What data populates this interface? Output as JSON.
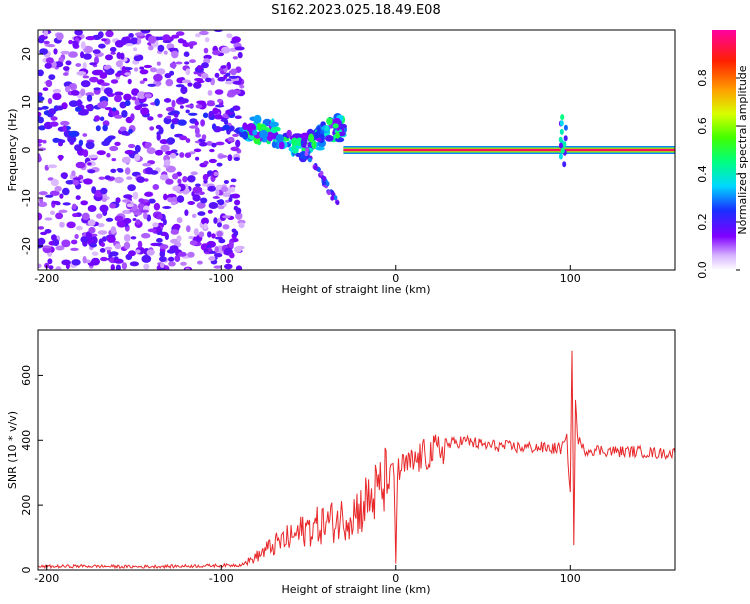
{
  "title": "S162.2023.025.18.49.E08",
  "chart_data": [
    {
      "type": "heatmap",
      "xlabel": "Height of straight line (km)",
      "ylabel": "Frequency (Hz)",
      "xlim": [
        -205,
        160
      ],
      "ylim": [
        -25,
        25
      ],
      "x_ticks": [
        -200,
        -100,
        0,
        100
      ],
      "x_tick_labels": [
        "-200",
        "-100",
        "0",
        "100"
      ],
      "y_ticks": [
        -20,
        -10,
        0,
        10,
        20
      ],
      "y_tick_labels": [
        "-20",
        "-10",
        "0",
        "10",
        "20"
      ],
      "colorbar": {
        "label": "Normalized spectral amplitude",
        "range": [
          0,
          1
        ],
        "ticks": [
          0.0,
          0.2,
          0.4,
          0.6,
          0.8
        ],
        "tick_labels": [
          "0.0",
          "0.2",
          "0.4",
          "0.6",
          "0.8"
        ]
      },
      "features": [
        {
          "desc": "broadband noise",
          "x_range": [
            -205,
            -88
          ],
          "freq_range": [
            -25,
            25
          ],
          "amplitude": 0.15
        },
        {
          "desc": "emerging signal",
          "x_range": [
            -88,
            -30
          ],
          "freq_center": 2.5,
          "amplitude": 0.4
        },
        {
          "desc": "falling branch",
          "x_range": [
            -55,
            -32
          ],
          "freq_range": [
            2,
            -12
          ],
          "amplitude": 0.2
        },
        {
          "desc": "steady tone",
          "x_range": [
            -30,
            160
          ],
          "freq_center": 0,
          "amplitude": 0.95
        },
        {
          "desc": "disturbance",
          "x": 96,
          "freq_range": [
            -3,
            7
          ],
          "amplitude": 0.3
        }
      ],
      "grid": false,
      "legend": "colorbar right"
    },
    {
      "type": "line",
      "xlabel": "Height of straight line (km)",
      "ylabel": "SNR (10 * v/v)",
      "xlim": [
        -205,
        160
      ],
      "ylim": [
        0,
        740
      ],
      "x_ticks": [
        -200,
        -100,
        0,
        100
      ],
      "x_tick_labels": [
        "-200",
        "-100",
        "0",
        "100"
      ],
      "y_ticks": [
        0,
        200,
        400,
        600
      ],
      "y_tick_labels": [
        "0",
        "200",
        "400",
        "600"
      ],
      "color": "#e8282a",
      "series": [
        {
          "x": [
            -205,
            -180,
            -150,
            -120,
            -100,
            -90,
            -85,
            -80,
            -75,
            -70,
            -65,
            -60,
            -55,
            -50,
            -45,
            -40,
            -35,
            -30,
            -25,
            -20,
            -15,
            -10,
            -5,
            -1,
            0,
            1,
            5,
            10,
            15,
            20,
            25,
            30,
            35,
            40,
            45,
            50,
            60,
            70,
            80,
            90,
            95,
            98,
            100,
            101,
            102,
            103,
            104,
            106,
            108,
            110,
            120,
            130,
            140,
            150,
            160
          ],
          "y": [
            10,
            12,
            10,
            12,
            14,
            15,
            25,
            40,
            60,
            75,
            90,
            100,
            115,
            130,
            135,
            145,
            150,
            160,
            175,
            190,
            220,
            240,
            270,
            300,
            20,
            300,
            320,
            330,
            350,
            360,
            370,
            385,
            395,
            398,
            392,
            385,
            382,
            378,
            378,
            375,
            375,
            400,
            240,
            700,
            80,
            520,
            420,
            380,
            370,
            372,
            368,
            365,
            365,
            360,
            360
          ]
        }
      ],
      "grid": false
    }
  ]
}
